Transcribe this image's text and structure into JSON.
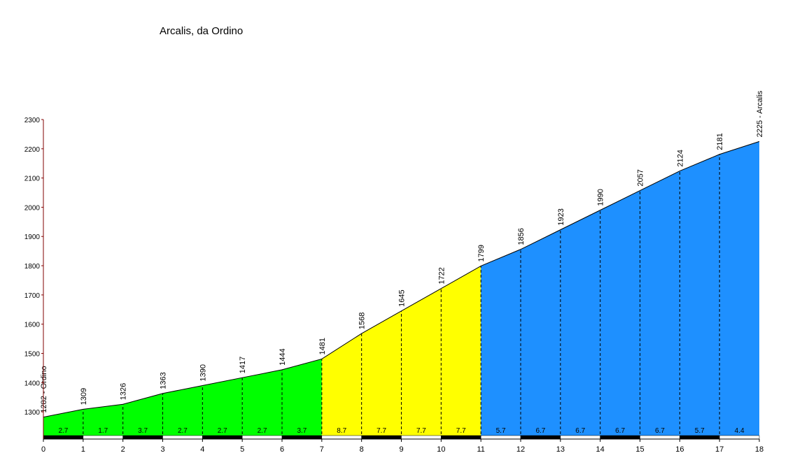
{
  "chart_data": {
    "type": "profile",
    "title": "Arcalis, da Ordino",
    "x": [
      0,
      1,
      2,
      3,
      4,
      5,
      6,
      7,
      8,
      9,
      10,
      11,
      12,
      13,
      14,
      15,
      16,
      17,
      18
    ],
    "values": [
      1282,
      1309,
      1326,
      1363,
      1390,
      1417,
      1444,
      1481,
      1568,
      1645,
      1722,
      1799,
      1856,
      1923,
      1990,
      2057,
      2124,
      2181,
      2225
    ],
    "value_labels": [
      "1282 - Ordino",
      "1309",
      "1326",
      "1363",
      "1390",
      "1417",
      "1444",
      "1481",
      "1568",
      "1645",
      "1722",
      "1799",
      "1856",
      "1923",
      "1990",
      "2057",
      "2124",
      "2181",
      "2225 - Arcalis"
    ],
    "gradients": [
      2.7,
      1.7,
      3.7,
      2.7,
      2.7,
      2.7,
      3.7,
      8.7,
      7.7,
      7.7,
      7.7,
      5.7,
      6.7,
      6.7,
      6.7,
      6.7,
      5.7,
      4.4
    ],
    "segment_colors": [
      "#00ff00",
      "#00ff00",
      "#00ff00",
      "#00ff00",
      "#00ff00",
      "#00ff00",
      "#00ff00",
      "#ffff00",
      "#ffff00",
      "#ffff00",
      "#ffff00",
      "#1e90ff",
      "#1e90ff",
      "#1e90ff",
      "#1e90ff",
      "#1e90ff",
      "#1e90ff",
      "#1e90ff"
    ],
    "xlim": [
      0,
      18
    ],
    "xticks": [
      0,
      1,
      2,
      3,
      4,
      5,
      6,
      7,
      8,
      9,
      10,
      11,
      12,
      13,
      14,
      15,
      16,
      17,
      18
    ],
    "ylim": [
      1207,
      2300
    ],
    "yticks": [
      1300,
      1400,
      1500,
      1600,
      1700,
      1800,
      1900,
      2000,
      2100,
      2200,
      2300
    ]
  }
}
